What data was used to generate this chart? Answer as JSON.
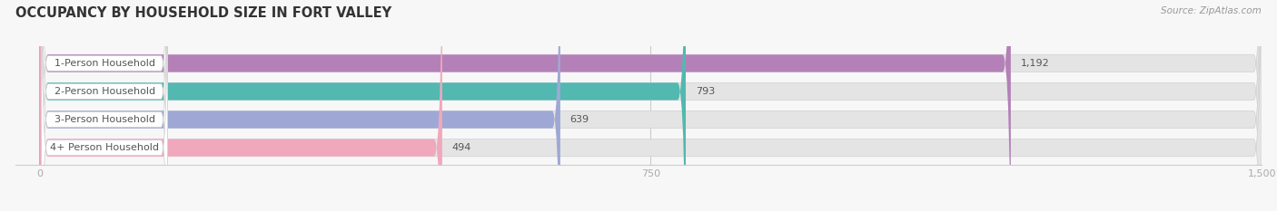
{
  "title": "OCCUPANCY BY HOUSEHOLD SIZE IN FORT VALLEY",
  "source": "Source: ZipAtlas.com",
  "categories": [
    "1-Person Household",
    "2-Person Household",
    "3-Person Household",
    "4+ Person Household"
  ],
  "values": [
    1192,
    793,
    639,
    494
  ],
  "bar_colors": [
    "#b480b8",
    "#52b8b0",
    "#9fa8d4",
    "#f0a8bc"
  ],
  "xlim": [
    -30,
    1500
  ],
  "xmin": 0,
  "xmax": 1500,
  "xticks": [
    0,
    750,
    1500
  ],
  "background_color": "#f7f7f7",
  "bar_bg_color": "#e4e4e4",
  "title_fontsize": 10.5,
  "label_fontsize": 8.0,
  "value_fontsize": 8.0,
  "bar_height": 0.62,
  "bar_spacing": 1.0
}
